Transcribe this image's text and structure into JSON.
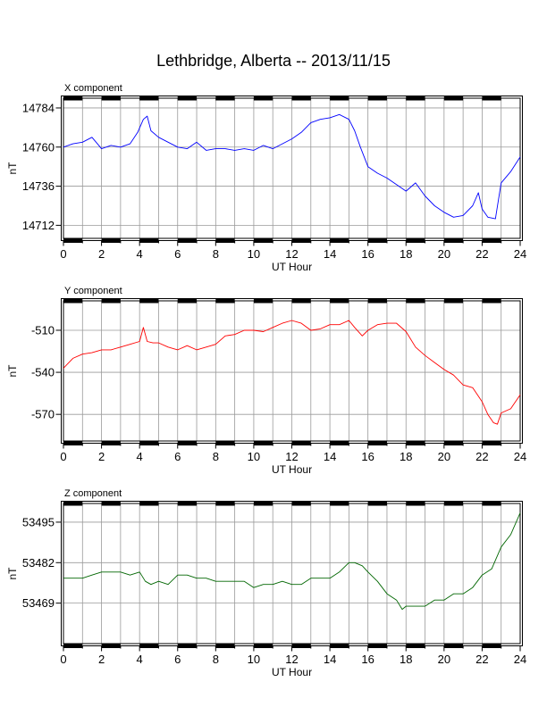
{
  "title": "Lethbridge, Alberta -- 2013/11/15",
  "chart_data": [
    {
      "type": "line",
      "subtitle": "X component",
      "xlabel": "UT Hour",
      "ylabel": "nT",
      "xlim": [
        0,
        24
      ],
      "ylim": [
        14704,
        14790
      ],
      "x_ticks": [
        0,
        2,
        4,
        6,
        8,
        10,
        12,
        14,
        16,
        18,
        20,
        22,
        24
      ],
      "y_ticks": [
        14712,
        14736,
        14760,
        14784
      ],
      "grid": true,
      "color": "#0000ff",
      "series": [
        {
          "x": [
            0,
            0.5,
            1.0,
            1.5,
            2.0,
            2.5,
            3.0,
            3.5,
            3.9,
            4.2,
            4.4,
            4.6,
            5.0,
            5.5,
            6.0,
            6.5,
            7.0,
            7.5,
            8.0,
            8.5,
            9.0,
            9.5,
            10.0,
            10.5,
            11.0,
            11.5,
            12.0,
            12.5,
            13.0,
            13.5,
            14.0,
            14.5,
            15.0,
            15.3,
            15.6,
            16.0,
            16.5,
            17.0,
            17.5,
            18.0,
            18.5,
            19.0,
            19.5,
            20.0,
            20.5,
            21.0,
            21.5,
            21.8,
            22.0,
            22.3,
            22.7,
            23.0,
            23.5,
            24.0
          ],
          "y": [
            14760,
            14762,
            14763,
            14766,
            14759,
            14761,
            14760,
            14762,
            14769,
            14777,
            14779,
            14770,
            14766,
            14763,
            14760,
            14759,
            14763,
            14758,
            14759,
            14759,
            14758,
            14759,
            14758,
            14761,
            14759,
            14762,
            14765,
            14769,
            14775,
            14777,
            14778,
            14780,
            14777,
            14770,
            14760,
            14748,
            14744,
            14741,
            14737,
            14733,
            14738,
            14730,
            14724,
            14720,
            14717,
            14718,
            14724,
            14732,
            14722,
            14717,
            14716,
            14738,
            14745,
            14754
          ]
        }
      ]
    },
    {
      "type": "line",
      "subtitle": "Y component",
      "xlabel": "UT Hour",
      "ylabel": "nT",
      "xlim": [
        0,
        24
      ],
      "ylim": [
        -589,
        -489
      ],
      "x_ticks": [
        0,
        2,
        4,
        6,
        8,
        10,
        12,
        14,
        16,
        18,
        20,
        22,
        24
      ],
      "y_ticks": [
        -510,
        -540,
        -570
      ],
      "grid": true,
      "color": "#ff0000",
      "series": [
        {
          "x": [
            0,
            0.5,
            1.0,
            1.5,
            2.0,
            2.5,
            3.0,
            3.5,
            4.0,
            4.2,
            4.4,
            4.7,
            5.0,
            5.5,
            6.0,
            6.5,
            7.0,
            7.5,
            8.0,
            8.5,
            9.0,
            9.5,
            10.0,
            10.5,
            11.0,
            11.5,
            12.0,
            12.5,
            13.0,
            13.5,
            14.0,
            14.5,
            15.0,
            15.3,
            15.7,
            16.0,
            16.5,
            17.0,
            17.5,
            18.0,
            18.5,
            19.0,
            19.5,
            20.0,
            20.5,
            21.0,
            21.5,
            22.0,
            22.3,
            22.6,
            22.8,
            23.0,
            23.5,
            24.0
          ],
          "y": [
            -537,
            -530,
            -527,
            -526,
            -524,
            -524,
            -522,
            -520,
            -518,
            -508,
            -518,
            -519,
            -519,
            -522,
            -524,
            -521,
            -524,
            -522,
            -520,
            -514,
            -513,
            -510,
            -510,
            -511,
            -508,
            -505,
            -503,
            -505,
            -510,
            -509,
            -506,
            -506,
            -503,
            -508,
            -514,
            -510,
            -506,
            -505,
            -505,
            -511,
            -522,
            -528,
            -533,
            -538,
            -542,
            -549,
            -551,
            -561,
            -570,
            -576,
            -577,
            -569,
            -566,
            -556
          ]
        }
      ]
    },
    {
      "type": "line",
      "subtitle": "Z component",
      "xlabel": "UT Hour",
      "ylabel": "nT",
      "xlim": [
        0,
        24
      ],
      "ylim": [
        53456,
        53501
      ],
      "x_ticks": [
        0,
        2,
        4,
        6,
        8,
        10,
        12,
        14,
        16,
        18,
        20,
        22,
        24
      ],
      "y_ticks": [
        53469,
        53482,
        53495
      ],
      "grid": true,
      "color": "#006600",
      "series": [
        {
          "x": [
            0,
            0.5,
            1.0,
            1.5,
            2.0,
            2.5,
            3.0,
            3.5,
            4.0,
            4.3,
            4.6,
            5.0,
            5.5,
            6.0,
            6.5,
            7.0,
            7.5,
            8.0,
            8.5,
            9.0,
            9.5,
            10.0,
            10.5,
            11.0,
            11.5,
            12.0,
            12.5,
            13.0,
            13.5,
            14.0,
            14.5,
            15.0,
            15.3,
            15.7,
            16.0,
            16.5,
            17.0,
            17.5,
            17.8,
            18.0,
            18.5,
            19.0,
            19.5,
            20.0,
            20.5,
            21.0,
            21.5,
            22.0,
            22.5,
            23.0,
            23.5,
            24.0
          ],
          "y": [
            53477,
            53477,
            53477,
            53478,
            53479,
            53479,
            53479,
            53478,
            53479,
            53476,
            53475,
            53476,
            53475,
            53478,
            53478,
            53477,
            53477,
            53476,
            53476,
            53476,
            53476,
            53474,
            53475,
            53475,
            53476,
            53475,
            53475,
            53477,
            53477,
            53477,
            53479,
            53482,
            53482,
            53481,
            53479,
            53476,
            53472,
            53470,
            53467,
            53468,
            53468,
            53468,
            53470,
            53470,
            53472,
            53472,
            53474,
            53478,
            53480,
            53487,
            53491,
            53498
          ]
        }
      ]
    }
  ]
}
